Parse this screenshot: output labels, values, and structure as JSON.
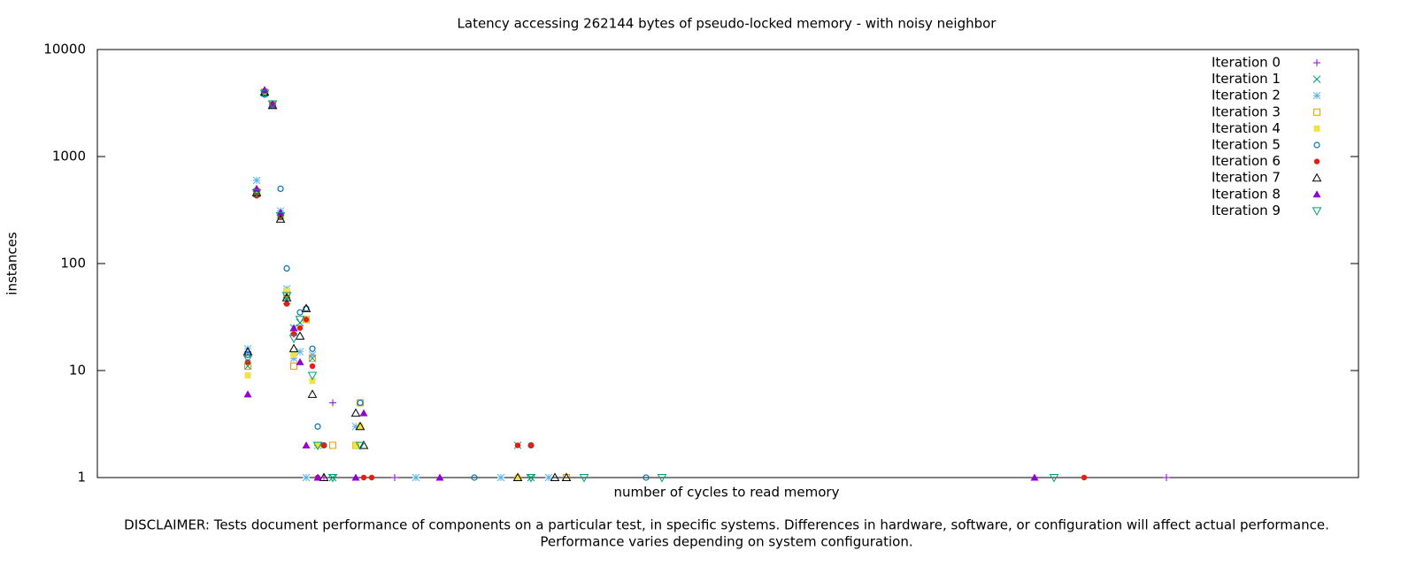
{
  "chart_data": {
    "type": "scatter",
    "title": "Latency accessing 262144 bytes of pseudo-locked memory - with noisy neighbor",
    "x_label": "number of cycles to read memory",
    "y_label": "instances",
    "footnote": [
      "DISCLAIMER: Tests document performance of components on a particular test, in specific systems.  Differences in hardware, software, or configuration will affect actual performance.",
      "Performance varies depending on system configuration."
    ],
    "xlim": [
      0,
      1425
    ],
    "ylim": [
      1,
      10000
    ],
    "yticks": [
      1,
      10,
      100,
      1000,
      10000
    ],
    "log_y": true,
    "legend": "top-right",
    "series": [
      {
        "name": "Iteration 0",
        "color": "#9400d3",
        "marker": "plus",
        "x": [
          170,
          180,
          189,
          198,
          207,
          214,
          222,
          236,
          243,
          266,
          249,
          256,
          336,
          475,
          1208
        ],
        "values": [
          15,
          480,
          4100,
          3100,
          290,
          50,
          22,
          30,
          14,
          5,
          2,
          1,
          1,
          1,
          1
        ]
      },
      {
        "name": "Iteration 1",
        "color": "#009e73",
        "marker": "cross",
        "x": [
          170,
          180,
          189,
          198,
          207,
          214,
          222,
          229,
          243,
          249,
          266,
          475,
          490
        ],
        "values": [
          11,
          450,
          4000,
          3000,
          270,
          45,
          25,
          28,
          13,
          2,
          1,
          2,
          1
        ]
      },
      {
        "name": "Iteration 2",
        "color": "#56b4e9",
        "marker": "star",
        "x": [
          170,
          180,
          189,
          198,
          207,
          214,
          222,
          229,
          236,
          243,
          292,
          236,
          360,
          456,
          510
        ],
        "values": [
          16,
          600,
          3900,
          3100,
          310,
          58,
          13,
          15,
          30,
          14,
          3,
          1,
          1,
          1,
          1
        ]
      },
      {
        "name": "Iteration 3",
        "color": "#e69f00",
        "marker": "square",
        "x": [
          170,
          180,
          189,
          198,
          207,
          214,
          222,
          236,
          243,
          266,
          297,
          292,
          530
        ],
        "values": [
          11,
          470,
          4000,
          3100,
          280,
          52,
          11,
          30,
          13,
          2,
          5,
          2,
          1
        ]
      },
      {
        "name": "Iteration 4",
        "color": "#f0e442",
        "marker": "square-filled",
        "x": [
          170,
          180,
          189,
          198,
          207,
          214,
          222,
          236,
          243,
          249,
          297,
          292,
          475
        ],
        "values": [
          9,
          470,
          4000,
          3100,
          280,
          55,
          14,
          30,
          8,
          2,
          3,
          2,
          1
        ]
      },
      {
        "name": "Iteration 5",
        "color": "#0072b2",
        "marker": "circle",
        "x": [
          170,
          180,
          189,
          198,
          207,
          214,
          229,
          236,
          243,
          249,
          256,
          297,
          426,
          620,
          490
        ],
        "values": [
          14,
          480,
          3800,
          3000,
          500,
          90,
          35,
          38,
          16,
          3,
          2,
          5,
          1,
          1,
          2
        ]
      },
      {
        "name": "Iteration 6",
        "color": "#e51e10",
        "marker": "circle-filled",
        "x": [
          170,
          180,
          189,
          198,
          207,
          214,
          222,
          229,
          236,
          243,
          256,
          475,
          490,
          249,
          301,
          310,
          1115
        ],
        "values": [
          12,
          430,
          4100,
          3100,
          270,
          42,
          22,
          25,
          30,
          11,
          2,
          2,
          2,
          1,
          1,
          1,
          1
        ]
      },
      {
        "name": "Iteration 7",
        "color": "#000000",
        "marker": "triangle",
        "x": [
          170,
          180,
          189,
          198,
          207,
          214,
          222,
          229,
          236,
          243,
          292,
          297,
          301,
          256,
          475,
          517,
          530
        ],
        "values": [
          15,
          460,
          4000,
          3000,
          260,
          48,
          16,
          21,
          38,
          6,
          4,
          3,
          2,
          1,
          1,
          1,
          1
        ]
      },
      {
        "name": "Iteration 8",
        "color": "#9400d3",
        "marker": "triangle-filled",
        "x": [
          170,
          180,
          189,
          198,
          207,
          222,
          229,
          236,
          249,
          301,
          292,
          387,
          1059
        ],
        "values": [
          6,
          500,
          4200,
          3100,
          300,
          25,
          12,
          2,
          1,
          4,
          1,
          1,
          1
        ]
      },
      {
        "name": "Iteration 9",
        "color": "#009e73",
        "marker": "triangle-down",
        "x": [
          170,
          180,
          189,
          198,
          207,
          214,
          222,
          229,
          243,
          249,
          266,
          297,
          490,
          550,
          638,
          1081
        ],
        "values": [
          13,
          460,
          3900,
          3100,
          280,
          50,
          20,
          30,
          9,
          2,
          1,
          2,
          1,
          1,
          1,
          1
        ]
      }
    ]
  }
}
